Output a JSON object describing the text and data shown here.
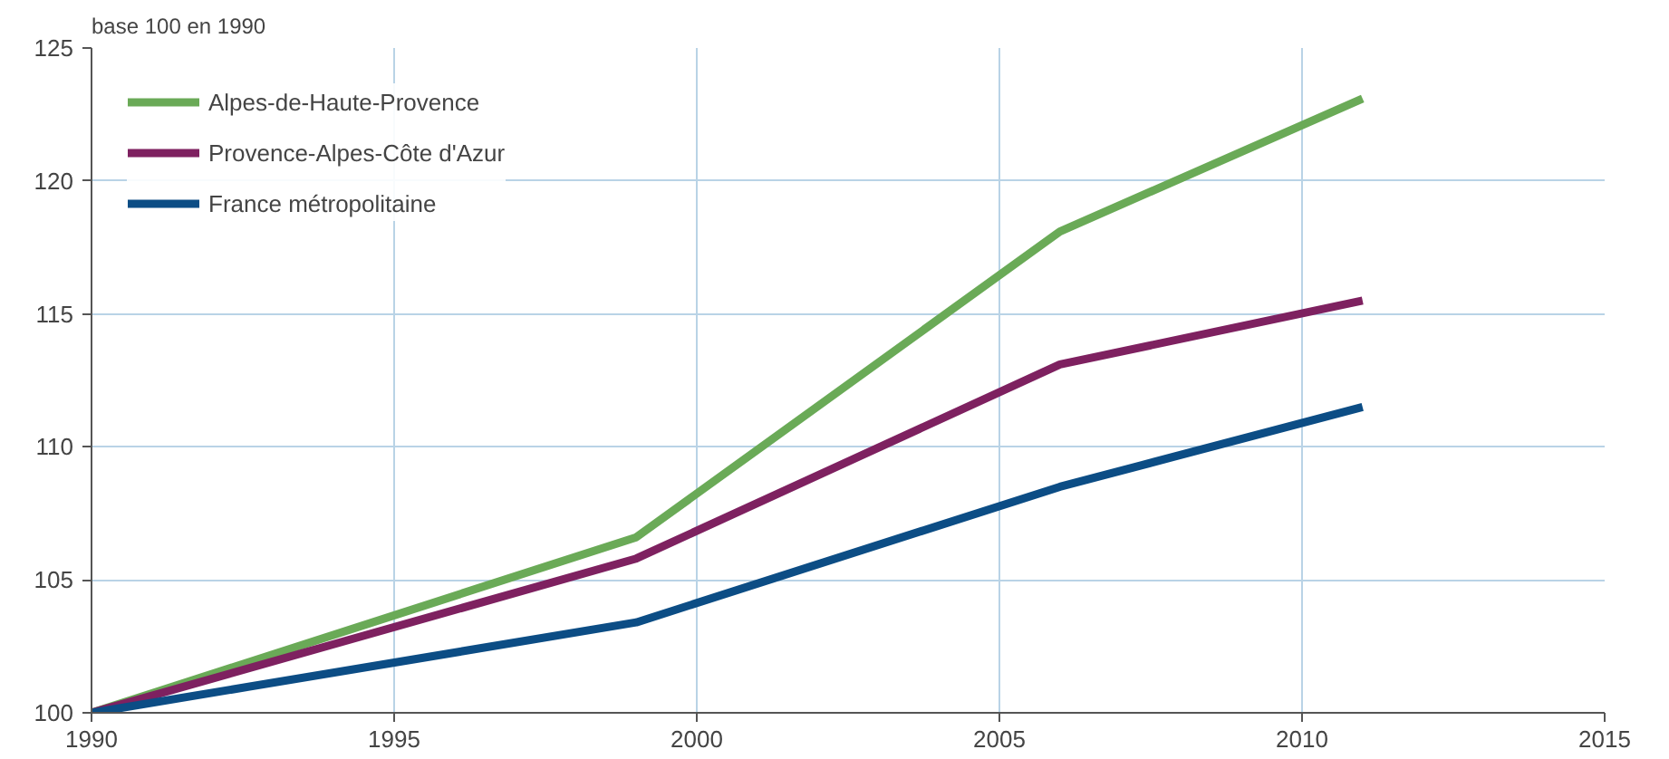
{
  "chart_data": {
    "type": "line",
    "ylabel": "base 100 en 1990",
    "x": [
      1990,
      1999,
      2006,
      2011
    ],
    "series": [
      {
        "name": "Alpes-de-Haute-Provence",
        "color": "#6aaa57",
        "values": [
          100,
          106.6,
          118.1,
          123.1
        ]
      },
      {
        "name": "Provence-Alpes-Côte d'Azur",
        "color": "#7e2160",
        "values": [
          100,
          105.8,
          113.1,
          115.5
        ]
      },
      {
        "name": "France métropolitaine",
        "color": "#0c4d85",
        "values": [
          100,
          103.4,
          108.5,
          111.5
        ]
      }
    ],
    "xlim": [
      1990,
      2015
    ],
    "xticks": [
      1990,
      1995,
      2000,
      2005,
      2010,
      2015
    ],
    "ylim": [
      100,
      125
    ],
    "yticks": [
      100,
      105,
      110,
      115,
      120,
      125
    ],
    "grid": true,
    "legend": "top left",
    "line_style": "solid",
    "marker": "none"
  }
}
